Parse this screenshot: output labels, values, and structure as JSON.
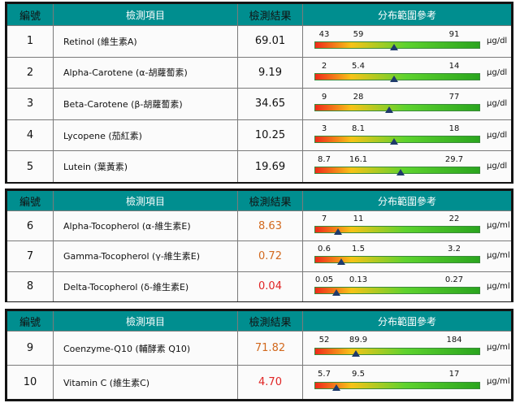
{
  "headers": {
    "no": "編號",
    "item": "檢測項目",
    "result": "檢測結果",
    "ref": "分布範圍參考"
  },
  "panels": [
    {
      "rows": [
        {
          "no": "1",
          "item": "Retinol (維生素A)",
          "result": "69.01",
          "status": "normal",
          "scale": [
            "43",
            "59",
            "91"
          ],
          "unit": "µg/dl",
          "marker_pos": 0.48
        },
        {
          "no": "2",
          "item": "Alpha-Carotene (α-胡蘿蔔素)",
          "result": "9.19",
          "status": "normal",
          "scale": [
            "2",
            "5.4",
            "14"
          ],
          "unit": "µg/dl",
          "marker_pos": 0.48
        },
        {
          "no": "3",
          "item": "Beta-Carotene (β-胡蘿蔔素)",
          "result": "34.65",
          "status": "normal",
          "scale": [
            "9",
            "28",
            "77"
          ],
          "unit": "µg/dl",
          "marker_pos": 0.45
        },
        {
          "no": "4",
          "item": "Lycopene (茄紅素)",
          "result": "10.25",
          "status": "normal",
          "scale": [
            "3",
            "8.1",
            "18"
          ],
          "unit": "µg/dl",
          "marker_pos": 0.48
        },
        {
          "no": "5",
          "item": "Lutein (葉黃素)",
          "result": "19.69",
          "status": "normal",
          "scale": [
            "8.7",
            "16.1",
            "29.7"
          ],
          "unit": "µg/dl",
          "marker_pos": 0.52
        }
      ]
    },
    {
      "rows": [
        {
          "no": "6",
          "item": "Alpha-Tocopherol (α-維生素E)",
          "result": "8.63",
          "status": "low",
          "scale": [
            "7",
            "11",
            "22"
          ],
          "unit": "µg/ml",
          "marker_pos": 0.14
        },
        {
          "no": "7",
          "item": "Gamma-Tocopherol (γ-維生素E)",
          "result": "0.72",
          "status": "low",
          "scale": [
            "0.6",
            "1.5",
            "3.2"
          ],
          "unit": "µg/ml",
          "marker_pos": 0.16
        },
        {
          "no": "8",
          "item": "Delta-Tocopherol (δ-維生素E)",
          "result": "0.04",
          "status": "very-low",
          "scale": [
            "0.05",
            "0.13",
            "0.27"
          ],
          "unit": "µg/ml",
          "marker_pos": 0.13
        }
      ]
    },
    {
      "rows": [
        {
          "no": "9",
          "item": "Coenzyme-Q10 (輔酵素 Q10)",
          "result": "71.82",
          "status": "low",
          "scale": [
            "52",
            "89.9",
            "184"
          ],
          "unit": "µg/ml",
          "marker_pos": 0.25
        },
        {
          "no": "10",
          "item": "Vitamin C (維生素C)",
          "result": "4.70",
          "status": "very-low",
          "scale": [
            "5.7",
            "9.5",
            "17"
          ],
          "unit": "µg/ml",
          "marker_pos": 0.13
        }
      ]
    }
  ],
  "colors": {
    "header_bg": "#008e8f",
    "low": "#d2691e",
    "very_low": "#e02424",
    "marker": "#1f3a6b"
  }
}
